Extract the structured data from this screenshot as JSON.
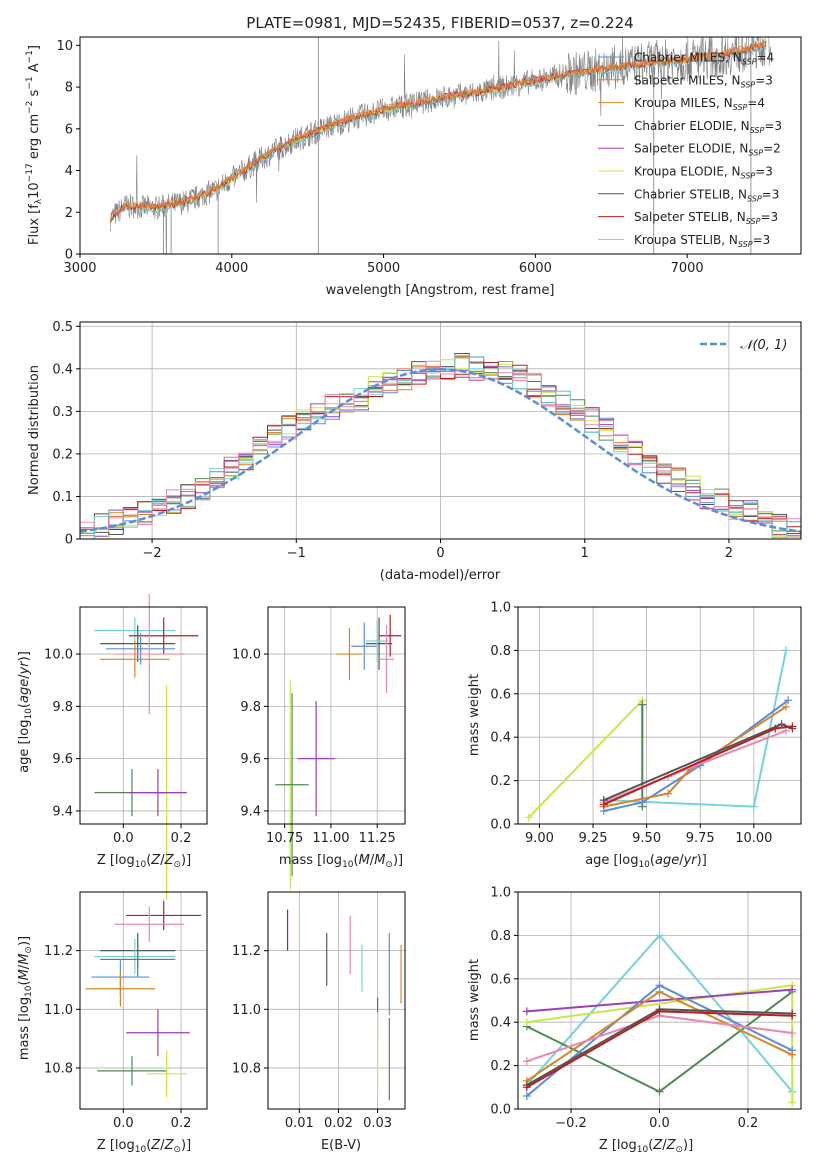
{
  "colors": {
    "Chabrier MILES": "#5b8ddb",
    "Salpeter MILES": "#e8794a",
    "Kroupa MILES": "#d4862a",
    "Chabrier ELODIE": "#4f8a55",
    "Salpeter ELODIE": "#9b3fb8",
    "Kroupa ELODIE": "#c8e84a",
    "Chabrier STELIB": "#555555",
    "Salpeter STELIB": "#b81f1f",
    "Kroupa STELIB": "#74d3d8",
    "pink": "#e88ab0",
    "gauss": "#5b8ddb",
    "grid": "#b0b0b0",
    "data": "#808080"
  },
  "chart_data": [
    {
      "type": "line",
      "title": "PLATE=0981, MJD=52435, FIBERID=0537, z=0.224",
      "xlabel": "wavelength [Angstrom, rest frame]",
      "ylabel": "Flux [f_λ 10^-17 erg cm^-2 s^-1 A^-1]",
      "xlim": [
        3000,
        7750
      ],
      "ylim": [
        0,
        10.4
      ],
      "xticks": [
        3000,
        4000,
        5000,
        6000,
        7000
      ],
      "yticks": [
        0,
        2,
        4,
        6,
        8,
        10
      ],
      "grid": false,
      "legend_position": "top-right",
      "spectrum_trend": {
        "x": [
          3200,
          3300,
          3500,
          3700,
          3900,
          4000,
          4200,
          4400,
          4600,
          4800,
          5000,
          5200,
          5400,
          5600,
          5800,
          6000,
          6200,
          6400,
          6600,
          6800,
          7000,
          7200,
          7400,
          7550
        ],
        "y": [
          1.7,
          2.3,
          2.2,
          2.5,
          3.1,
          3.6,
          4.6,
          5.4,
          6.0,
          6.5,
          6.9,
          7.2,
          7.5,
          7.7,
          8.0,
          8.3,
          8.6,
          8.8,
          9.0,
          9.2,
          9.3,
          9.5,
          9.8,
          10.1
        ]
      },
      "legend": [
        {
          "name": "Chabrier MILES, N_SSP=4",
          "label": "Chabrier MILES, N",
          "n": "4"
        },
        {
          "name": "Salpeter MILES, N_SSP=3",
          "label": "Salpeter MILES, N",
          "n": "3"
        },
        {
          "name": "Kroupa MILES, N_SSP=4",
          "label": "Kroupa MILES, N",
          "n": "4"
        },
        {
          "name": "Chabrier ELODIE, N_SSP=3",
          "label": "Chabrier ELODIE, N",
          "n": "3"
        },
        {
          "name": "Salpeter ELODIE, N_SSP=2",
          "label": "Salpeter ELODIE, N",
          "n": "2"
        },
        {
          "name": "Kroupa ELODIE, N_SSP=3",
          "label": "Kroupa ELODIE, N",
          "n": "3"
        },
        {
          "name": "Chabrier STELIB, N_SSP=3",
          "label": "Chabrier STELIB, N",
          "n": "3"
        },
        {
          "name": "Salpeter STELIB, N_SSP=3",
          "label": "Salpeter STELIB, N",
          "n": "3"
        },
        {
          "name": "Kroupa STELIB, N_SSP=3",
          "label": "Kroupa STELIB, N",
          "n": "3"
        }
      ],
      "legend_sub": "SSP"
    },
    {
      "type": "line",
      "xlabel": "(data-model)/error",
      "ylabel": "Normed distribution",
      "xlim": [
        -2.5,
        2.5
      ],
      "ylim": [
        0,
        0.51
      ],
      "xticks": [
        -2,
        -1,
        0,
        1,
        2
      ],
      "yticks": [
        0.0,
        0.1,
        0.2,
        0.3,
        0.4,
        0.5
      ],
      "grid": true,
      "legend_position": "top-right",
      "gaussian_label": "𝒩(0, 1)",
      "hist_bin_edges_start": -2.5,
      "hist_bin_width": 0.1,
      "hist_values": [
        0.02,
        0.03,
        0.04,
        0.05,
        0.06,
        0.07,
        0.09,
        0.1,
        0.12,
        0.14,
        0.17,
        0.19,
        0.22,
        0.24,
        0.26,
        0.28,
        0.3,
        0.31,
        0.32,
        0.33,
        0.36,
        0.37,
        0.38,
        0.39,
        0.4,
        0.4,
        0.41,
        0.4,
        0.4,
        0.39,
        0.38,
        0.36,
        0.34,
        0.32,
        0.3,
        0.28,
        0.26,
        0.23,
        0.2,
        0.18,
        0.16,
        0.14,
        0.12,
        0.1,
        0.09,
        0.07,
        0.06,
        0.04,
        0.03,
        0.02
      ]
    },
    {
      "type": "scatter",
      "xlabel": "Z [log10(Z/Z⊙)]",
      "ylabel": "age  [log10(age/yr)]",
      "xlim": [
        -0.15,
        0.29
      ],
      "ylim": [
        9.35,
        10.18
      ],
      "xticks": [
        0.0,
        0.2
      ],
      "xticklabels": [
        "0.0",
        "0.2"
      ],
      "yticks": [
        9.4,
        9.6,
        9.8,
        10.0
      ],
      "yticklabels": [
        "9.4",
        "9.6",
        "9.8",
        "10.0"
      ],
      "points": [
        {
          "series": "Kroupa STELIB",
          "x": 0.04,
          "y": 10.09,
          "xerr": 0.14,
          "yerr": 0.05
        },
        {
          "series": "Salpeter STELIB",
          "x": 0.14,
          "y": 10.07,
          "xerr": 0.12,
          "yerr": 0.07
        },
        {
          "series": "Chabrier STELIB",
          "x": 0.05,
          "y": 10.04,
          "xerr": 0.13,
          "yerr": 0.07
        },
        {
          "series": "Chabrier MILES",
          "x": 0.06,
          "y": 10.02,
          "xerr": 0.12,
          "yerr": 0.06
        },
        {
          "series": "pink",
          "x": 0.09,
          "y": 10.0,
          "xerr": 0.12,
          "yerr": 0.23
        },
        {
          "series": "Kroupa MILES",
          "x": 0.04,
          "y": 9.98,
          "xerr": 0.12,
          "yerr": 0.07
        },
        {
          "series": "Kroupa ELODIE",
          "x": 0.15,
          "y": 9.47,
          "xerr": 0.07,
          "yerr": 0.41
        },
        {
          "series": "Chabrier ELODIE",
          "x": 0.03,
          "y": 9.47,
          "xerr": 0.13,
          "yerr": 0.09
        },
        {
          "series": "Salpeter ELODIE",
          "x": 0.12,
          "y": 9.47,
          "xerr": 0.1,
          "yerr": 0.09
        }
      ]
    },
    {
      "type": "scatter",
      "xlabel": "mass [log10(M/M⊙)]",
      "xlim": [
        10.66,
        11.4
      ],
      "ylim": [
        9.35,
        10.18
      ],
      "xticks": [
        10.75,
        11.0,
        11.25
      ],
      "xticklabels": [
        "10.75",
        "11.00",
        "11.25"
      ],
      "yticks": [
        9.4,
        9.6,
        9.8,
        10.0
      ],
      "yticklabels": [
        "9.4",
        "9.6",
        "9.8",
        "10.0"
      ],
      "points": [
        {
          "series": "Salpeter STELIB",
          "x": 11.32,
          "y": 10.07,
          "xerr": 0.06,
          "yerr": 0.08
        },
        {
          "series": "Chabrier STELIB",
          "x": 11.26,
          "y": 10.04,
          "xerr": 0.07,
          "yerr": 0.1
        },
        {
          "series": "Chabrier MILES",
          "x": 11.18,
          "y": 10.03,
          "xerr": 0.07,
          "yerr": 0.09
        },
        {
          "series": "Kroupa STELIB",
          "x": 11.25,
          "y": 10.05,
          "xerr": 0.06,
          "yerr": 0.08
        },
        {
          "series": "Kroupa MILES",
          "x": 11.1,
          "y": 10.0,
          "xerr": 0.07,
          "yerr": 0.1
        },
        {
          "series": "pink",
          "x": 11.3,
          "y": 9.98,
          "xerr": 0.04,
          "yerr": 0.13
        },
        {
          "series": "Kroupa ELODIE",
          "x": 10.78,
          "y": 9.5,
          "xerr": 0.05,
          "yerr": 0.4
        },
        {
          "series": "Chabrier ELODIE",
          "x": 10.79,
          "y": 9.5,
          "xerr": 0.09,
          "yerr": 0.35
        },
        {
          "series": "Salpeter ELODIE",
          "x": 10.92,
          "y": 9.6,
          "xerr": 0.1,
          "yerr": 0.22
        }
      ]
    },
    {
      "type": "line",
      "xlabel": "age  [log10(age/yr)]",
      "ylabel": "mass weight",
      "xlim": [
        8.9,
        10.22
      ],
      "ylim": [
        0,
        1.0
      ],
      "xticks": [
        9.0,
        9.25,
        9.5,
        9.75,
        10.0
      ],
      "xticklabels": [
        "9.00",
        "9.25",
        "9.50",
        "9.75",
        "10.00"
      ],
      "yticks": [
        0.0,
        0.2,
        0.4,
        0.6,
        0.8,
        1.0
      ],
      "yticklabels": [
        "0.0",
        "0.2",
        "0.4",
        "0.6",
        "0.8",
        "1.0"
      ],
      "grid": true,
      "series": [
        {
          "color": "Kroupa ELODIE",
          "x": [
            8.95,
            9.48,
            9.48
          ],
          "y": [
            0.03,
            0.57,
            0.4
          ]
        },
        {
          "color": "Chabrier ELODIE",
          "x": [
            9.48,
            9.48
          ],
          "y": [
            0.55,
            0.08
          ]
        },
        {
          "color": "Kroupa STELIB",
          "x": [
            9.3,
            10.0,
            10.15,
            10.15
          ],
          "y": [
            0.11,
            0.08,
            0.8,
            0.8
          ]
        },
        {
          "color": "Chabrier MILES",
          "x": [
            9.3,
            9.48,
            9.75,
            10.16
          ],
          "y": [
            0.06,
            0.1,
            0.27,
            0.57
          ]
        },
        {
          "color": "Kroupa MILES",
          "x": [
            9.3,
            9.6,
            9.7,
            10.15
          ],
          "y": [
            0.08,
            0.14,
            0.25,
            0.54
          ]
        },
        {
          "color": "pink",
          "x": [
            9.3,
            9.6,
            10.15
          ],
          "y": [
            0.1,
            0.22,
            0.43
          ]
        },
        {
          "color": "Chabrier STELIB",
          "x": [
            9.3,
            10.13,
            10.18
          ],
          "y": [
            0.11,
            0.46,
            0.44
          ]
        },
        {
          "color": "Salpeter STELIB",
          "x": [
            9.3,
            10.1,
            10.18
          ],
          "y": [
            0.09,
            0.44,
            0.45
          ]
        }
      ]
    },
    {
      "type": "scatter",
      "xlabel": "Z [log10(Z/Z⊙)]",
      "ylabel": "mass [log10(M/M⊙)]",
      "xlim": [
        -0.15,
        0.29
      ],
      "ylim": [
        10.66,
        11.4
      ],
      "xticks": [
        0.0,
        0.2
      ],
      "xticklabels": [
        "0.0",
        "0.2"
      ],
      "yticks": [
        10.8,
        11.0,
        11.2
      ],
      "yticklabels": [
        "10.8",
        "11.0",
        "11.2"
      ],
      "points": [
        {
          "series": "Salpeter STELIB",
          "x": 0.14,
          "y": 11.32,
          "xerr": 0.13,
          "yerr": 0.05
        },
        {
          "series": "pink",
          "x": 0.09,
          "y": 11.29,
          "xerr": 0.12,
          "yerr": 0.06
        },
        {
          "series": "Chabrier STELIB",
          "x": 0.05,
          "y": 11.2,
          "xerr": 0.13,
          "yerr": 0.06
        },
        {
          "series": "Kroupa STELIB",
          "x": 0.04,
          "y": 11.18,
          "xerr": 0.14,
          "yerr": 0.06
        },
        {
          "series": "Chabrier ELODIE",
          "x": 0.05,
          "y": 11.17,
          "xerr": 0.13,
          "yerr": 0.06
        },
        {
          "series": "Chabrier MILES",
          "x": -0.01,
          "y": 11.11,
          "xerr": 0.1,
          "yerr": 0.06
        },
        {
          "series": "Kroupa MILES",
          "x": -0.01,
          "y": 11.07,
          "xerr": 0.12,
          "yerr": 0.06
        },
        {
          "series": "Salpeter ELODIE",
          "x": 0.12,
          "y": 10.92,
          "xerr": 0.11,
          "yerr": 0.08
        },
        {
          "series": "Chabrier ELODIE",
          "x": 0.03,
          "y": 10.79,
          "xerr": 0.12,
          "yerr": 0.05
        },
        {
          "series": "Kroupa ELODIE",
          "x": 0.15,
          "y": 10.78,
          "xerr": 0.07,
          "yerr": 0.08
        }
      ]
    },
    {
      "type": "scatter",
      "xlabel": "E(B-V)",
      "xlim": [
        0.002,
        0.037
      ],
      "ylim": [
        10.66,
        11.4
      ],
      "xticks": [
        0.01,
        0.02,
        0.03
      ],
      "xticklabels": [
        "0.01",
        "0.02",
        "0.03"
      ],
      "yticks": [
        10.8,
        11.0,
        11.2
      ],
      "yticklabels": [
        "10.8",
        "11.0",
        "11.2"
      ],
      "points": [
        {
          "series": "Salpeter STELIB",
          "x": 0.007,
          "y": 11.27,
          "xerr": 0.0,
          "yerr": 0.07
        },
        {
          "series": "Chabrier STELIB",
          "x": 0.017,
          "y": 11.17,
          "xerr": 0.0,
          "yerr": 0.09
        },
        {
          "series": "pink",
          "x": 0.023,
          "y": 11.22,
          "xerr": 0.0,
          "yerr": 0.1
        },
        {
          "series": "Kroupa STELIB",
          "x": 0.026,
          "y": 11.14,
          "xerr": 0.0,
          "yerr": 0.08
        },
        {
          "series": "Chabrier MILES",
          "x": 0.033,
          "y": 11.12,
          "xerr": 0.0,
          "yerr": 0.14
        },
        {
          "series": "Kroupa MILES",
          "x": 0.036,
          "y": 11.12,
          "xerr": 0.0,
          "yerr": 0.1
        },
        {
          "series": "Salpeter ELODIE",
          "x": 0.03,
          "y": 10.97,
          "xerr": 0.0,
          "yerr": 0.07
        },
        {
          "series": "Kroupa ELODIE",
          "x": 0.03,
          "y": 10.85,
          "xerr": 0.0,
          "yerr": 0.14
        },
        {
          "series": "Chabrier ELODIE",
          "x": 0.033,
          "y": 10.83,
          "xerr": 0.0,
          "yerr": 0.14
        }
      ]
    },
    {
      "type": "line",
      "xlabel": "Z [log10(Z/Z⊙)]",
      "ylabel": "mass weight",
      "xlim": [
        -0.32,
        0.32
      ],
      "ylim": [
        0,
        1.0
      ],
      "xticks": [
        -0.2,
        0.0,
        0.2
      ],
      "xticklabels": [
        "−0.2",
        "0.0",
        "0.2"
      ],
      "yticks": [
        0.0,
        0.2,
        0.4,
        0.6,
        0.8,
        1.0
      ],
      "yticklabels": [
        "0.0",
        "0.2",
        "0.4",
        "0.6",
        "0.8",
        "1.0"
      ],
      "grid": true,
      "series": [
        {
          "color": "Kroupa STELIB",
          "x": [
            -0.3,
            0.0,
            0.3,
            0.3
          ],
          "y": [
            0.11,
            0.8,
            0.08,
            0.08
          ]
        },
        {
          "color": "Chabrier ELODIE",
          "x": [
            -0.3,
            0.0,
            0.3
          ],
          "y": [
            0.38,
            0.08,
            0.54
          ]
        },
        {
          "color": "Kroupa ELODIE",
          "x": [
            -0.3,
            0.3,
            0.3
          ],
          "y": [
            0.4,
            0.57,
            0.03
          ]
        },
        {
          "color": "Salpeter ELODIE",
          "x": [
            -0.3,
            0.3
          ],
          "y": [
            0.45,
            0.55
          ]
        },
        {
          "color": "Chabrier MILES",
          "x": [
            -0.3,
            0.0,
            0.3
          ],
          "y": [
            0.06,
            0.57,
            0.27
          ]
        },
        {
          "color": "Kroupa MILES",
          "x": [
            -0.3,
            0.0,
            0.3
          ],
          "y": [
            0.13,
            0.54,
            0.25
          ]
        },
        {
          "color": "pink",
          "x": [
            -0.3,
            0.0,
            0.3
          ],
          "y": [
            0.22,
            0.43,
            0.35
          ]
        },
        {
          "color": "Chabrier STELIB",
          "x": [
            -0.3,
            0.0,
            0.3
          ],
          "y": [
            0.11,
            0.46,
            0.44
          ]
        },
        {
          "color": "Salpeter STELIB",
          "x": [
            -0.3,
            0.0,
            0.3
          ],
          "y": [
            0.1,
            0.45,
            0.43
          ]
        }
      ]
    }
  ]
}
